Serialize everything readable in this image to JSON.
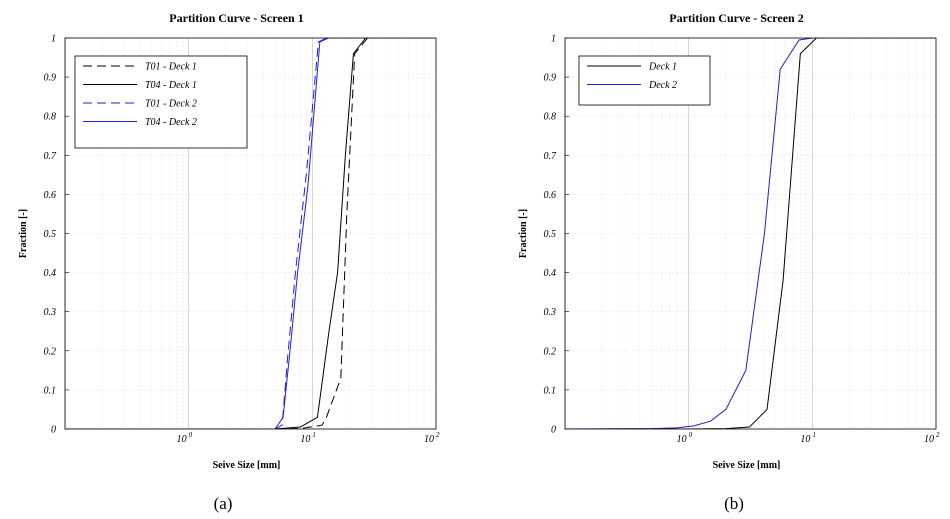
{
  "captions": [
    "(a)",
    "(b)"
  ],
  "chart_data": [
    {
      "type": "line",
      "title": "Partition Curve - Screen 1",
      "xlabel": "Seive Size [mm]",
      "ylabel": "Fraction [-]",
      "x_scale": "log",
      "xlim": [
        0.1,
        100
      ],
      "ylim": [
        0,
        1
      ],
      "x_tick_labels": [
        {
          "base": "10",
          "exp": "0"
        },
        {
          "base": "10",
          "exp": "1"
        },
        {
          "base": "10",
          "exp": "2"
        }
      ],
      "y_tick_labels": [
        "0",
        "0.1",
        "0.2",
        "0.3",
        "0.4",
        "0.5",
        "0.6",
        "0.7",
        "0.8",
        "0.9",
        "1"
      ],
      "grid": "dotted, log minor",
      "legend": "top-left",
      "series": [
        {
          "name": "T01 - Deck 1",
          "color": "#000000",
          "style": "dashed",
          "x": [
            0.1,
            5,
            8,
            12,
            13,
            17,
            19,
            22,
            28,
            100
          ],
          "y": [
            0,
            0,
            0.001,
            0.01,
            0.03,
            0.13,
            0.55,
            0.96,
            1,
            1
          ]
        },
        {
          "name": "T04 - Deck 1",
          "color": "#000000",
          "style": "solid",
          "x": [
            0.1,
            5,
            8,
            11,
            13.5,
            16,
            18.5,
            21.5,
            27,
            100
          ],
          "y": [
            0,
            0,
            0.005,
            0.03,
            0.24,
            0.4,
            0.7,
            0.96,
            1,
            1
          ]
        },
        {
          "name": "T01 - Deck 2",
          "color": "#1f1fd6",
          "style": "dashed",
          "x": [
            0.1,
            5,
            5.7,
            6.3,
            7.3,
            9,
            11.2,
            13,
            100
          ],
          "y": [
            0,
            0,
            0.01,
            0.18,
            0.4,
            0.66,
            0.99,
            1,
            1
          ]
        },
        {
          "name": "T04 - Deck 2",
          "color": "#1f1fd6",
          "style": "solid",
          "x": [
            0.1,
            5,
            5.8,
            6.6,
            7.6,
            9.2,
            11.5,
            13.5,
            100
          ],
          "y": [
            0,
            0,
            0.03,
            0.2,
            0.4,
            0.62,
            0.99,
            1,
            1
          ]
        }
      ]
    },
    {
      "type": "line",
      "title": "Partition Curve - Screen 2",
      "xlabel": "Seive Size [mm]",
      "ylabel": "Fraction [-]",
      "x_scale": "log",
      "xlim": [
        0.1,
        100
      ],
      "ylim": [
        0,
        1
      ],
      "x_tick_labels": [
        {
          "base": "10",
          "exp": "0"
        },
        {
          "base": "10",
          "exp": "1"
        },
        {
          "base": "10",
          "exp": "2"
        }
      ],
      "y_tick_labels": [
        "0",
        "0.1",
        "0.2",
        "0.3",
        "0.4",
        "0.5",
        "0.6",
        "0.7",
        "0.8",
        "0.9",
        "1"
      ],
      "grid": "dotted, log minor",
      "legend": "top-left",
      "series": [
        {
          "name": "Deck 1",
          "color": "#000000",
          "style": "solid",
          "x": [
            0.1,
            1,
            2,
            3.1,
            4.3,
            5.8,
            8,
            10.8,
            100
          ],
          "y": [
            0,
            0,
            0.001,
            0.005,
            0.05,
            0.38,
            0.96,
            1,
            1
          ]
        },
        {
          "name": "Deck 2",
          "color": "#1f1fd6",
          "style": "solid",
          "x": [
            0.1,
            0.5,
            0.8,
            1.1,
            1.5,
            2,
            2.9,
            4.1,
            5.5,
            7.8,
            10,
            100
          ],
          "y": [
            0,
            0.001,
            0.003,
            0.008,
            0.02,
            0.05,
            0.15,
            0.5,
            0.92,
            0.995,
            1,
            1
          ]
        }
      ]
    }
  ]
}
